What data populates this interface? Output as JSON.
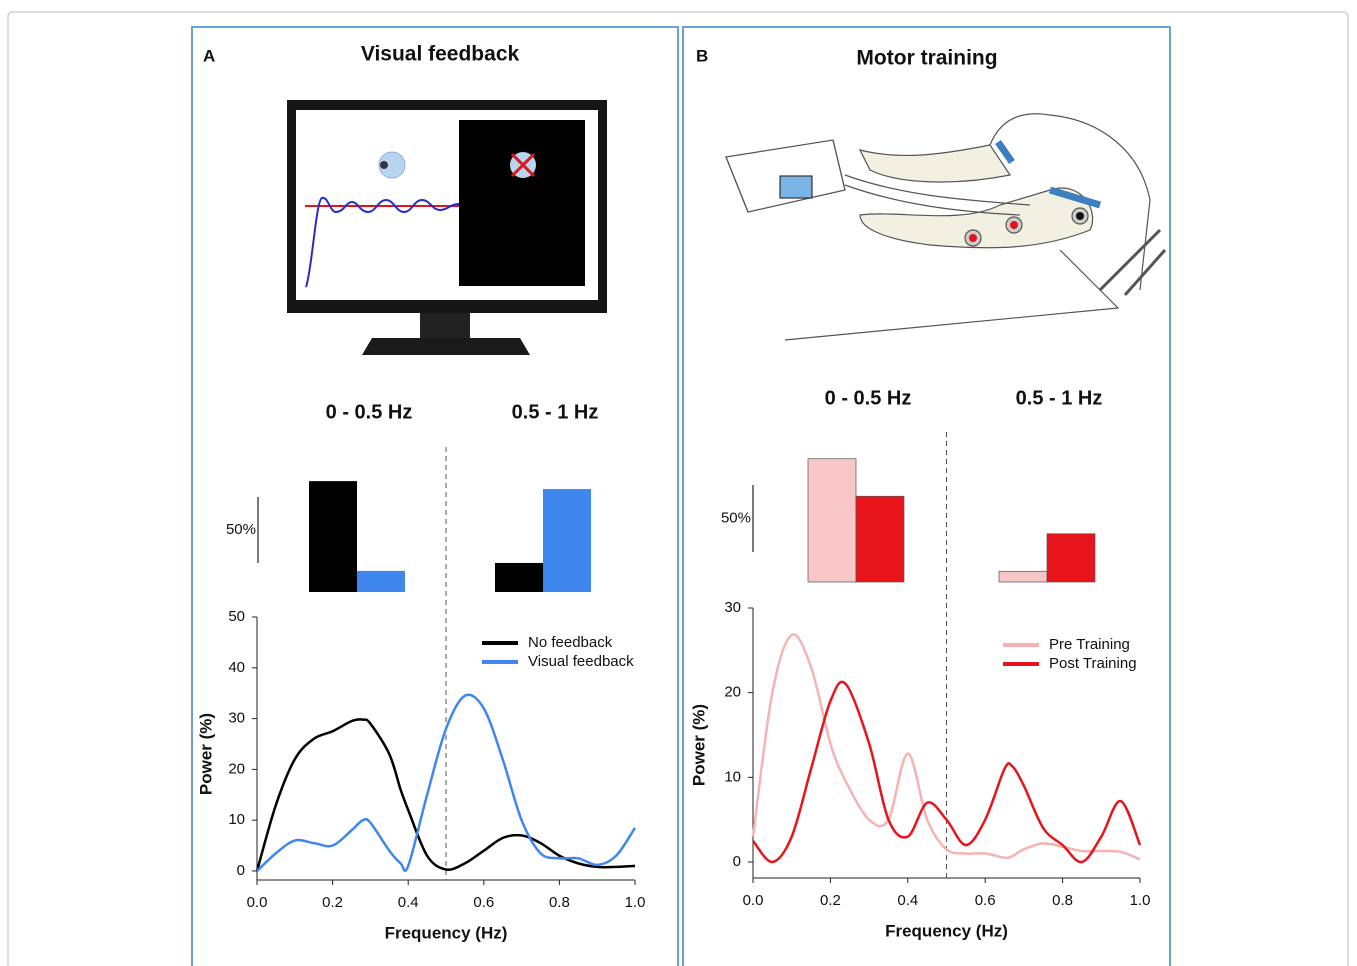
{
  "panels": [
    {
      "label": "A",
      "title": "Visual feedback"
    },
    {
      "label": "B",
      "title": "Motor training"
    }
  ],
  "chart_data": [
    {
      "type": "bar",
      "categories": [
        "0 - 0.5 Hz",
        "0.5 - 1 Hz"
      ],
      "series": [
        {
          "color": "#000000",
          "values": [
            84,
            22
          ]
        },
        {
          "color": "#3f87ee",
          "values": [
            16,
            78
          ]
        }
      ],
      "scale_bar": {
        "value": 50,
        "label": "50%"
      }
    },
    {
      "type": "line",
      "xlabel": "Frequency (Hz)",
      "ylabel": "Power (%)",
      "x": [
        0,
        0.05,
        0.1,
        0.15,
        0.2,
        0.25,
        0.28,
        0.3,
        0.35,
        0.38,
        0.4,
        0.45,
        0.5,
        0.55,
        0.6,
        0.65,
        0.7,
        0.75,
        0.8,
        0.85,
        0.9,
        0.95,
        1.0
      ],
      "series": [
        {
          "name": "No feedback",
          "color": "#000000",
          "values": [
            0,
            13,
            22,
            26,
            27.5,
            29.5,
            29.8,
            29,
            23,
            16,
            12,
            3,
            0.3,
            1.5,
            4,
            6.5,
            7,
            5.5,
            3,
            1.5,
            0.8,
            0.8,
            1
          ]
        },
        {
          "name": "Visual feedback",
          "color": "#3f87ee",
          "values": [
            0,
            3.5,
            6,
            5.5,
            5,
            8,
            10,
            9.5,
            4,
            1.5,
            1,
            15,
            28,
            34.5,
            32,
            22,
            10,
            3.5,
            2.5,
            2.5,
            1.2,
            3,
            8.5
          ]
        }
      ],
      "xlim": [
        0,
        1
      ],
      "ylim": [
        0,
        50
      ],
      "xticks": [
        {
          "value": 0,
          "label": "0.0"
        },
        0.2,
        0.4,
        0.6,
        0.8,
        {
          "value": 1,
          "label": "1.0"
        }
      ],
      "yticks": [
        0,
        10,
        20,
        30,
        40,
        50
      ],
      "vline": 0.5,
      "legend": "upper right"
    },
    {
      "type": "bar",
      "categories": [
        "0 - 0.5 Hz",
        "0.5 - 1 Hz"
      ],
      "series": [
        {
          "color": "#f8c6c6",
          "values": [
            92,
            8
          ]
        },
        {
          "color": "#e8141b",
          "values": [
            64,
            36
          ]
        }
      ],
      "scale_bar": {
        "value": 50,
        "label": "50%"
      }
    },
    {
      "type": "line",
      "xlabel": "Frequency (Hz)",
      "ylabel": "Power (%)",
      "x": [
        0,
        0.05,
        0.1,
        0.15,
        0.2,
        0.24,
        0.3,
        0.35,
        0.4,
        0.45,
        0.5,
        0.55,
        0.6,
        0.65,
        0.67,
        0.7,
        0.75,
        0.8,
        0.85,
        0.9,
        0.95,
        1.0
      ],
      "series": [
        {
          "name": "Pre Training",
          "color": "#f5b3b3",
          "values": [
            3,
            20,
            26.8,
            23,
            14,
            9.5,
            5,
            5,
            12.8,
            5,
            1.5,
            1,
            1,
            0.5,
            0.7,
            1.5,
            2.2,
            1.8,
            1.3,
            1.3,
            1.2,
            0.3
          ]
        },
        {
          "name": "Post Training",
          "color": "#e8141b",
          "values": [
            2.5,
            0,
            3,
            11,
            19,
            21,
            14,
            5,
            3,
            7,
            5,
            2,
            5,
            11,
            11.3,
            9,
            4,
            2,
            0,
            3,
            7.2,
            2
          ]
        }
      ],
      "xlim": [
        0,
        1
      ],
      "ylim": [
        0,
        30
      ],
      "xticks": [
        {
          "value": 0,
          "label": "0.0"
        },
        0.2,
        0.4,
        0.6,
        0.8,
        {
          "value": 1,
          "label": "1.0"
        }
      ],
      "yticks": [
        0,
        10,
        20,
        30
      ],
      "vline": 0.5,
      "legend": "upper right"
    }
  ]
}
